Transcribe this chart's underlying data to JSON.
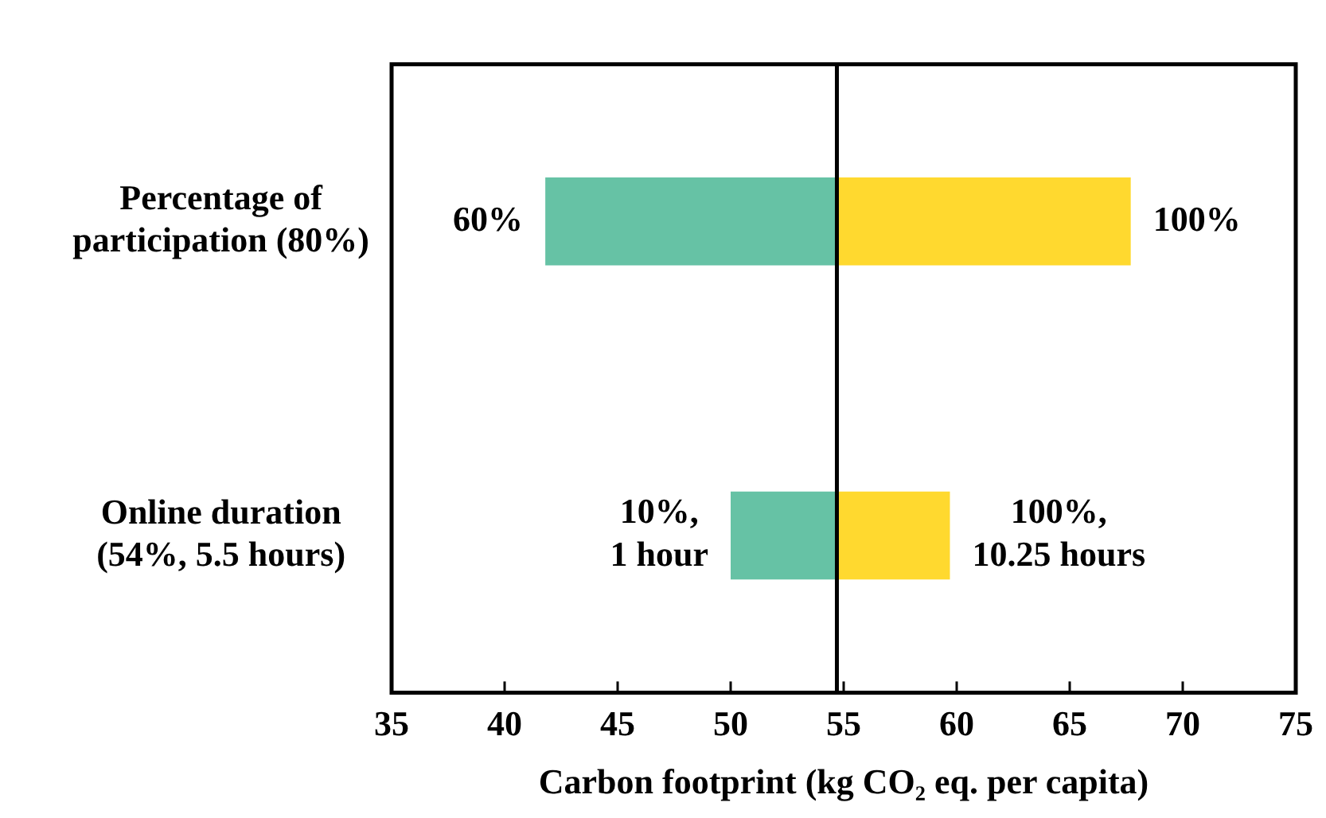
{
  "chart_data": {
    "type": "bar",
    "orientation": "horizontal",
    "xlabel": "Carbon footprint (kg CO₂ eq. per capita)",
    "categories": [
      "Percentage of\nparticipation (80%)",
      "Online duration\n(54%, 5.5 hours)"
    ],
    "series": [
      {
        "color": "#66c2a5",
        "base": [
          54.7,
          54.7
        ],
        "values": [
          -12.9,
          -4.7
        ]
      },
      {
        "color": "#ffd92f",
        "base": [
          54.7,
          54.7
        ],
        "values": [
          13.0,
          5.0
        ]
      }
    ],
    "annotations": [
      {
        "text": "60%",
        "x": 41.8,
        "y": "Percentage of\nparticipation (80%)"
      },
      {
        "text": "100%",
        "x": 67.7,
        "y": "Percentage of\nparticipation (80%)"
      },
      {
        "text": "10%,\n1 hour",
        "x": 50.0,
        "y": "Online duration\n(54%, 5.5 hours)"
      },
      {
        "text": "100%,\n10.25 hours",
        "x": 59.7,
        "y": "Online duration\n(54%, 5.5 hours)"
      }
    ],
    "xlim": [
      35,
      75
    ],
    "xticks": [
      35,
      40,
      45,
      50,
      55,
      60,
      65,
      70,
      75
    ],
    "ref_lines": [
      {
        "axis": "x",
        "value": 54.7
      }
    ],
    "grid": false,
    "legend": false
  }
}
